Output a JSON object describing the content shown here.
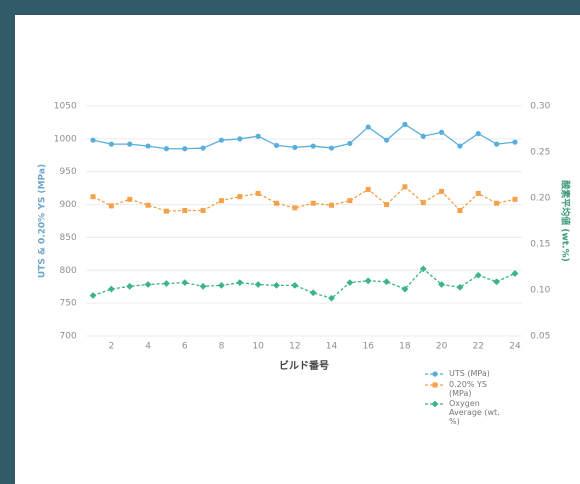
{
  "chart_data": {
    "type": "line",
    "y_label": "UTS & 0.20% YS (MPa)",
    "y2_label": "酸素平均値 (wt.%)",
    "x_label": "ビルド番号",
    "x": [
      1,
      2,
      3,
      4,
      5,
      6,
      7,
      8,
      9,
      10,
      11,
      12,
      13,
      14,
      15,
      16,
      17,
      18,
      19,
      20,
      21,
      22,
      23,
      24
    ],
    "xlim": [
      0.6,
      24.4
    ],
    "xticks": [
      2,
      4,
      6,
      8,
      10,
      12,
      14,
      16,
      18,
      20,
      22,
      24
    ],
    "ylim": [
      700,
      1050
    ],
    "yticks": [
      700,
      750,
      800,
      850,
      900,
      950,
      1000,
      1050
    ],
    "y2lim": [
      0.05,
      0.3
    ],
    "y2ticks": [
      0.05,
      {
        "value": 0.1,
        "label": "0.10"
      },
      0.15,
      {
        "value": 0.2,
        "label": "0.20"
      },
      0.25,
      {
        "value": 0.3,
        "label": "0.30"
      }
    ],
    "grid": true,
    "series": [
      {
        "name": "UTS (MPa)",
        "color": "#5aaedc",
        "marker": "circle",
        "dash": false,
        "values": [
          998,
          992,
          992,
          989,
          985,
          985,
          986,
          998,
          1000,
          1004,
          990,
          987,
          989,
          986,
          993,
          1018,
          998,
          1022,
          1004,
          1010,
          989,
          1008,
          992,
          995
        ]
      },
      {
        "name": "0.20% YS (MPa)",
        "color": "#f5a04a",
        "marker": "square",
        "dash": true,
        "values": [
          912,
          898,
          908,
          899,
          890,
          891,
          891,
          906,
          912,
          917,
          902,
          895,
          902,
          899,
          906,
          923,
          900,
          927,
          903,
          920,
          891,
          917,
          902,
          908
        ]
      },
      {
        "name": "Oxygen Average (wt. %)",
        "color": "#3cb38a",
        "marker": "diamond",
        "dash": true,
        "axis": "y2",
        "values": [
          0.094,
          0.101,
          0.104,
          0.106,
          0.107,
          0.108,
          0.104,
          0.105,
          0.108,
          0.106,
          0.105,
          0.105,
          0.097,
          0.091,
          0.108,
          0.11,
          0.109,
          0.101,
          0.123,
          0.106,
          0.103,
          0.116,
          0.109,
          0.118
        ]
      }
    ]
  }
}
